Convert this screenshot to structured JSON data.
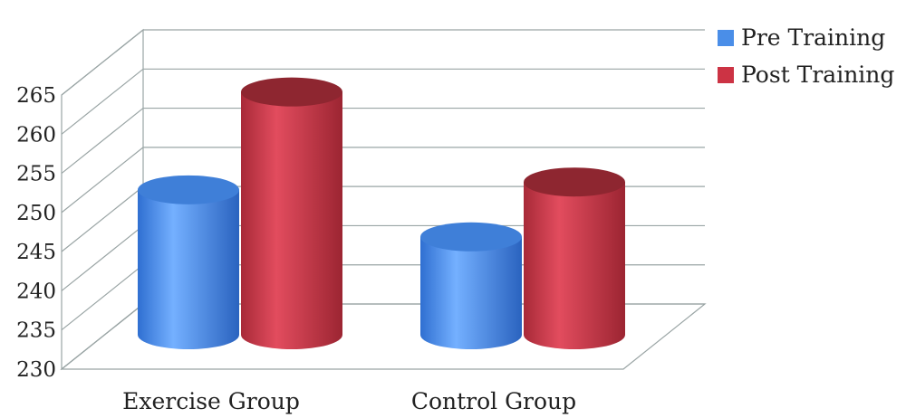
{
  "chart_data": {
    "type": "bar",
    "style": "3d-cylinder",
    "title": "",
    "xlabel": "",
    "ylabel": "",
    "categories": [
      "Exercise Group",
      "Control Group"
    ],
    "series": [
      {
        "name": "Pre Training",
        "values": [
          250,
          244
        ],
        "color": "#4a8ee8"
      },
      {
        "name": "Post Training",
        "values": [
          262.5,
          251
        ],
        "color": "#cc3344"
      }
    ],
    "ylim": [
      230,
      265
    ],
    "yticks": [
      230,
      235,
      240,
      245,
      250,
      255,
      260,
      265
    ],
    "grid": true,
    "legend_position": "top-right"
  }
}
